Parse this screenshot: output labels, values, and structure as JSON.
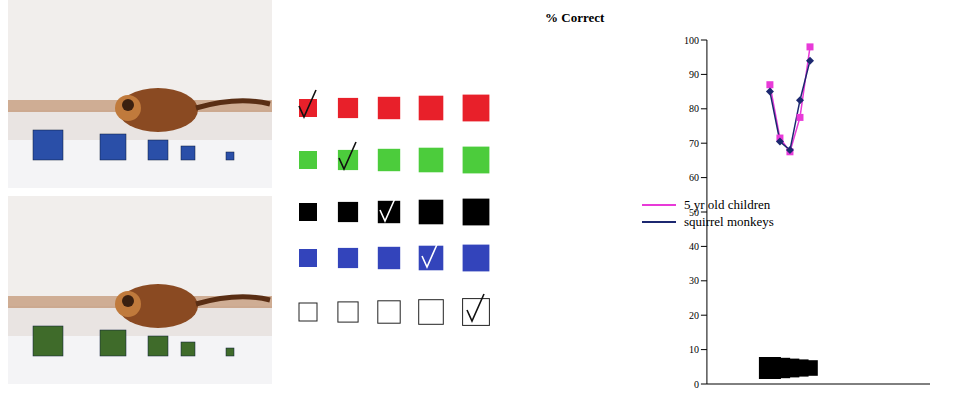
{
  "chart_data": {
    "type": "line",
    "y_label": "% Correct",
    "categories": [
      null,
      null,
      null,
      null,
      null
    ],
    "ylim": [
      0,
      100
    ],
    "yticks": [
      0,
      10,
      20,
      30,
      40,
      50,
      60,
      70,
      80,
      90,
      100
    ],
    "legend": "left",
    "series": [
      {
        "name": "5 yr old children",
        "color": "#e83ad8",
        "marker": "square",
        "values": [
          87,
          71.5,
          67.5,
          77.5,
          98
        ]
      },
      {
        "name": "squirrel monkeys",
        "color": "#1c2870",
        "marker": "diamond",
        "values": [
          85,
          70.5,
          68,
          82.5,
          94
        ]
      }
    ]
  }
}
